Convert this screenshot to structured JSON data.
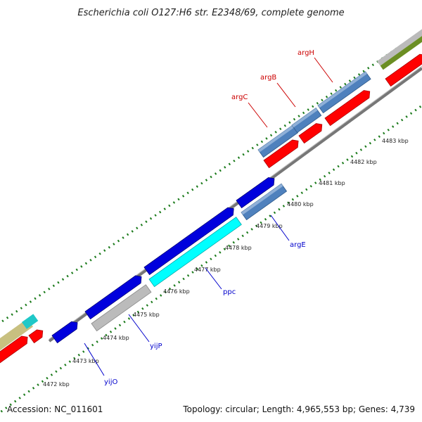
{
  "title": "Escherichia coli O127:H6 str. E2348/69, complete genome",
  "accession": "Accession: NC_011601",
  "summary": "Topology: circular; Length: 4,965,553 bp; Genes: 4,739",
  "colors": {
    "backbone": "#777777",
    "ruler": "#1a7a1a",
    "label_upper": "#cc0000",
    "label_lower": "#0000cc",
    "gene_red": "#ff0000",
    "gene_blue": "#0000dd",
    "gene_steel": "#4f81bd",
    "gene_cyan": "#00ffff",
    "gene_gray": "#bbbbbb",
    "gene_olive": "#6b8e23",
    "gene_khaki": "#c8c080",
    "gene_teal": "#20c8c8"
  },
  "ruler": {
    "ticks": [
      {
        "label": "4472 kbp"
      },
      {
        "label": "4473 kbp"
      },
      {
        "label": "4474 kbp"
      },
      {
        "label": "4475 kbp"
      },
      {
        "label": "4476 kbp"
      },
      {
        "label": "4477 kbp"
      },
      {
        "label": "4478 kbp"
      },
      {
        "label": "4479 kbp"
      },
      {
        "label": "4480 kbp"
      },
      {
        "label": "4481 kbp"
      },
      {
        "label": "4482 kbp"
      },
      {
        "label": "4483 kbp"
      }
    ]
  },
  "gene_labels_upper": [
    {
      "name": "argC"
    },
    {
      "name": "argB"
    },
    {
      "name": "argH"
    }
  ],
  "gene_labels_lower": [
    {
      "name": "yijO"
    },
    {
      "name": "yijP"
    },
    {
      "name": "ppc"
    },
    {
      "name": "argE"
    }
  ]
}
